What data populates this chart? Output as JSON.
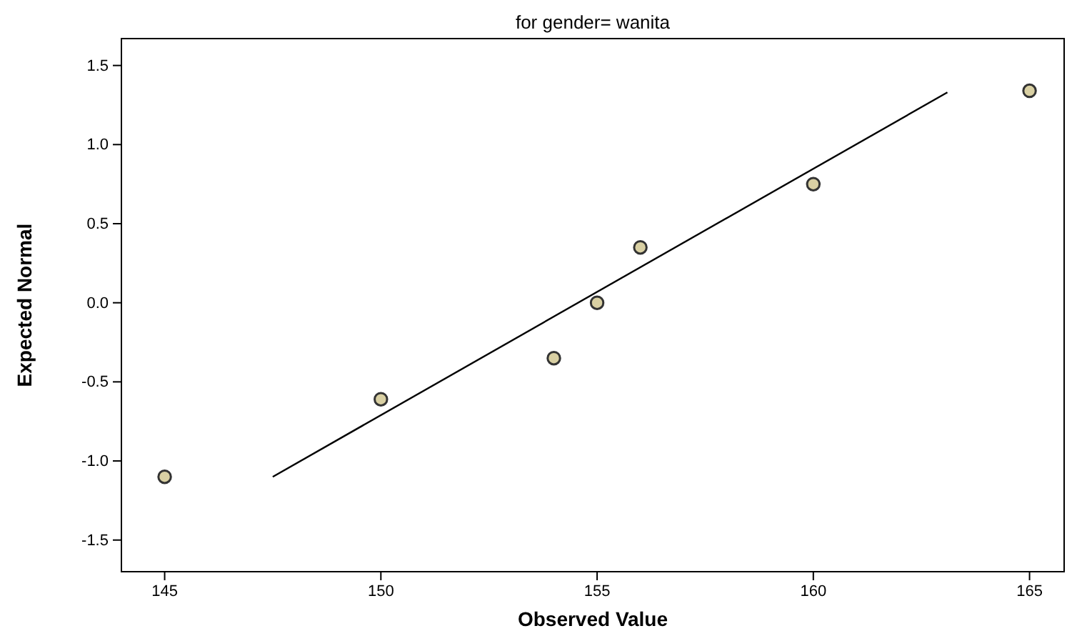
{
  "chart_data": {
    "type": "scatter",
    "title": "for gender= wanita",
    "xlabel": "Observed Value",
    "ylabel": "Expected Normal",
    "xlim": [
      144,
      165.8
    ],
    "ylim": [
      -1.7,
      1.67
    ],
    "xticks": [
      145,
      150,
      155,
      160,
      165
    ],
    "yticks": [
      {
        "value": -1.5,
        "label": "-1.5"
      },
      {
        "value": -1,
        "label": "-1.0"
      },
      {
        "value": -0.5,
        "label": "-0.5"
      },
      {
        "value": 0,
        "label": "0.0"
      },
      {
        "value": 0.5,
        "label": "0.5"
      },
      {
        "value": 1,
        "label": "1.0"
      },
      {
        "value": 1.5,
        "label": "1.5"
      }
    ],
    "grid": false,
    "series": [
      {
        "marker": "circle",
        "color": "#d9d0a3",
        "x": [
          145,
          150,
          154,
          155,
          156,
          160,
          165
        ],
        "values": [
          -1.1,
          -0.61,
          -0.35,
          0,
          0.35,
          0.75,
          1.34
        ]
      },
      {
        "type": "line",
        "marker": "none",
        "color": "#000000",
        "x": [
          147.5,
          163.1
        ],
        "values": [
          -1.1,
          1.33
        ]
      }
    ]
  }
}
